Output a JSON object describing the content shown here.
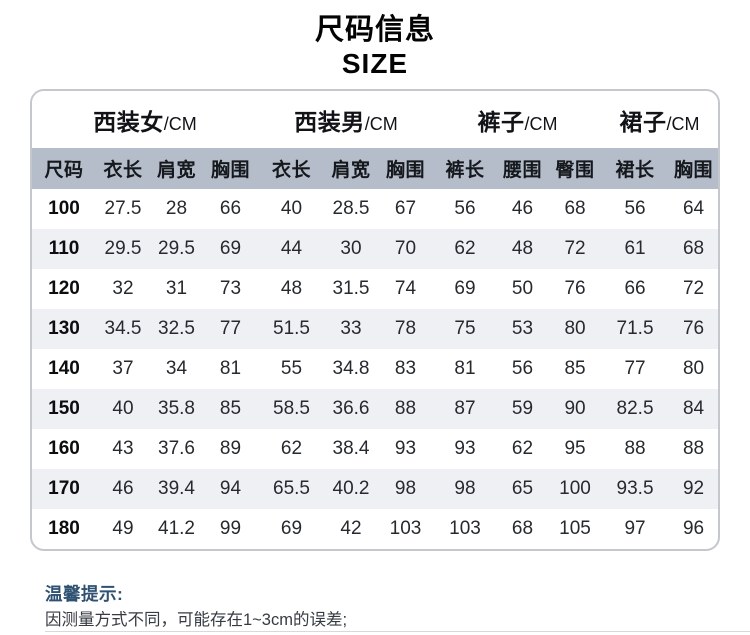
{
  "page": {
    "title_cn": "尺码信息",
    "title_en": "SIZE"
  },
  "chart_data": {
    "type": "table",
    "title": "尺码信息",
    "subtitle": "SIZE",
    "column_groups": [
      {
        "name": "西装女",
        "unit": "/CM",
        "span": 4
      },
      {
        "name": "西装男",
        "unit": "/CM",
        "span": 3
      },
      {
        "name": "裤子",
        "unit": "/CM",
        "span": 3
      },
      {
        "name": "裙子",
        "unit": "/CM",
        "span": 2
      }
    ],
    "columns": [
      "尺码",
      "衣长",
      "肩宽",
      "胸围",
      "衣长",
      "肩宽",
      "胸围",
      "裤长",
      "腰围",
      "臀围",
      "裙长",
      "胸围"
    ],
    "rows": [
      [
        "100",
        "27.5",
        "28",
        "66",
        "40",
        "28.5",
        "67",
        "56",
        "46",
        "68",
        "56",
        "64"
      ],
      [
        "110",
        "29.5",
        "29.5",
        "69",
        "44",
        "30",
        "70",
        "62",
        "48",
        "72",
        "61",
        "68"
      ],
      [
        "120",
        "32",
        "31",
        "73",
        "48",
        "31.5",
        "74",
        "69",
        "50",
        "76",
        "66",
        "72"
      ],
      [
        "130",
        "34.5",
        "32.5",
        "77",
        "51.5",
        "33",
        "78",
        "75",
        "53",
        "80",
        "71.5",
        "76"
      ],
      [
        "140",
        "37",
        "34",
        "81",
        "55",
        "34.8",
        "83",
        "81",
        "56",
        "85",
        "77",
        "80"
      ],
      [
        "150",
        "40",
        "35.8",
        "85",
        "58.5",
        "36.6",
        "88",
        "87",
        "59",
        "90",
        "82.5",
        "84"
      ],
      [
        "160",
        "43",
        "37.6",
        "89",
        "62",
        "38.4",
        "93",
        "93",
        "62",
        "95",
        "88",
        "88"
      ],
      [
        "170",
        "46",
        "39.4",
        "94",
        "65.5",
        "40.2",
        "98",
        "98",
        "65",
        "100",
        "93.5",
        "92"
      ],
      [
        "180",
        "49",
        "41.2",
        "99",
        "69",
        "42",
        "103",
        "103",
        "68",
        "105",
        "97",
        "96"
      ]
    ]
  },
  "notice": {
    "title": "温馨提示:",
    "line1": "因测量方式不同，可能存在1~3cm的误差;"
  },
  "colors": {
    "header_band": "#b4bdc9",
    "row_stripe": "#eef0f4",
    "card_border": "#c4c7cc",
    "notice_title": "#2f5172",
    "title_text": "#030303"
  }
}
